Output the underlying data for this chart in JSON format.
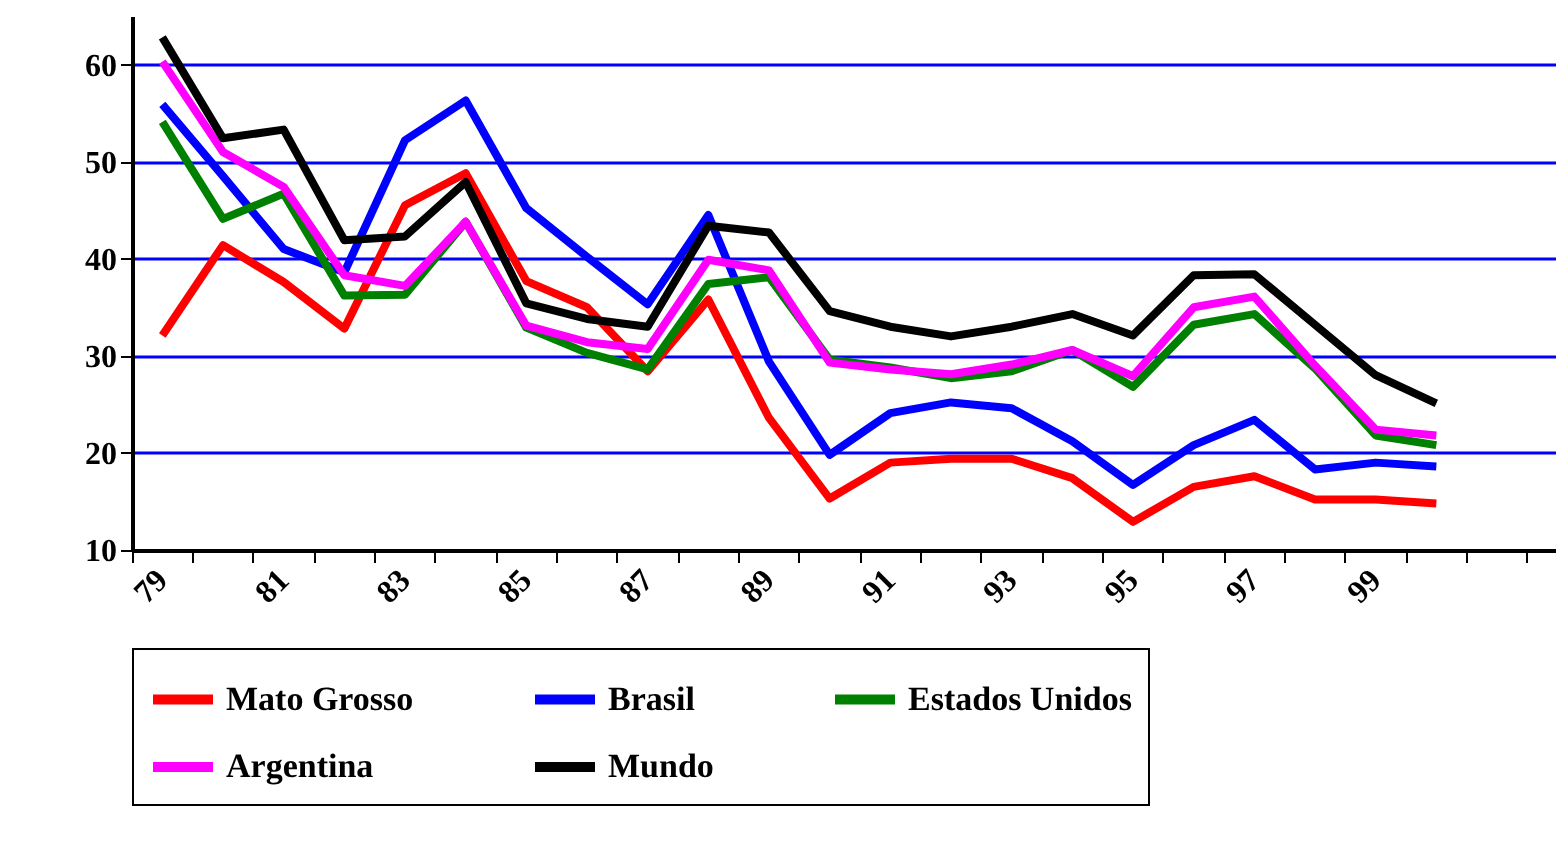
{
  "chart_data": {
    "type": "line",
    "categories": [
      "79",
      null,
      "81",
      null,
      "83",
      null,
      "85",
      null,
      "87",
      null,
      "89",
      null,
      "91",
      null,
      "93",
      null,
      "95",
      null,
      "97",
      null,
      "99",
      null,
      null,
      null
    ],
    "series": [
      {
        "name": "Mato Grosso",
        "color": "#ff0000",
        "values": [
          32.1,
          41.4,
          37.6,
          32.8,
          45.5,
          48.8,
          37.7,
          35.0,
          28.4,
          35.8,
          23.6,
          15.3,
          19.0,
          19.4,
          19.4,
          17.4,
          12.9,
          16.5,
          17.6,
          15.2,
          15.2,
          14.8,
          null,
          null
        ]
      },
      {
        "name": "Brasil",
        "color": "#0000ff",
        "values": [
          55.9,
          48.5,
          41.0,
          38.6,
          52.2,
          56.3,
          45.2,
          40.2,
          35.3,
          44.5,
          29.4,
          19.8,
          24.1,
          25.2,
          24.6,
          21.2,
          16.7,
          20.8,
          23.4,
          18.3,
          19.0,
          18.6,
          null,
          null
        ]
      },
      {
        "name": "Estados Unidos",
        "color": "#008000",
        "values": [
          54.1,
          44.1,
          46.7,
          36.2,
          36.3,
          43.8,
          32.9,
          30.3,
          28.6,
          37.4,
          38.1,
          29.6,
          28.8,
          27.7,
          28.4,
          30.6,
          26.8,
          33.2,
          34.3,
          28.7,
          21.8,
          20.8,
          null,
          null
        ]
      },
      {
        "name": "Argentina",
        "color": "#ff00ff",
        "values": [
          60.3,
          51.0,
          47.4,
          38.3,
          37.2,
          43.8,
          33.1,
          31.4,
          30.7,
          39.9,
          38.8,
          29.3,
          28.6,
          28.1,
          29.1,
          30.6,
          27.9,
          35.0,
          36.1,
          29.0,
          22.4,
          21.8,
          null,
          null
        ]
      },
      {
        "name": "Mundo",
        "color": "#000000",
        "values": [
          62.8,
          52.4,
          53.3,
          41.9,
          42.3,
          47.9,
          35.4,
          33.8,
          33.0,
          43.4,
          42.7,
          34.6,
          33.0,
          32.0,
          33.0,
          34.3,
          32.1,
          38.3,
          38.4,
          33.2,
          28.0,
          25.1,
          null,
          null
        ]
      }
    ],
    "ylim": [
      10,
      65
    ],
    "yticks": [
      10,
      20,
      30,
      40,
      50,
      60
    ],
    "grid": "y",
    "legend": "bottom",
    "marker": "none",
    "line_style": "solid"
  }
}
